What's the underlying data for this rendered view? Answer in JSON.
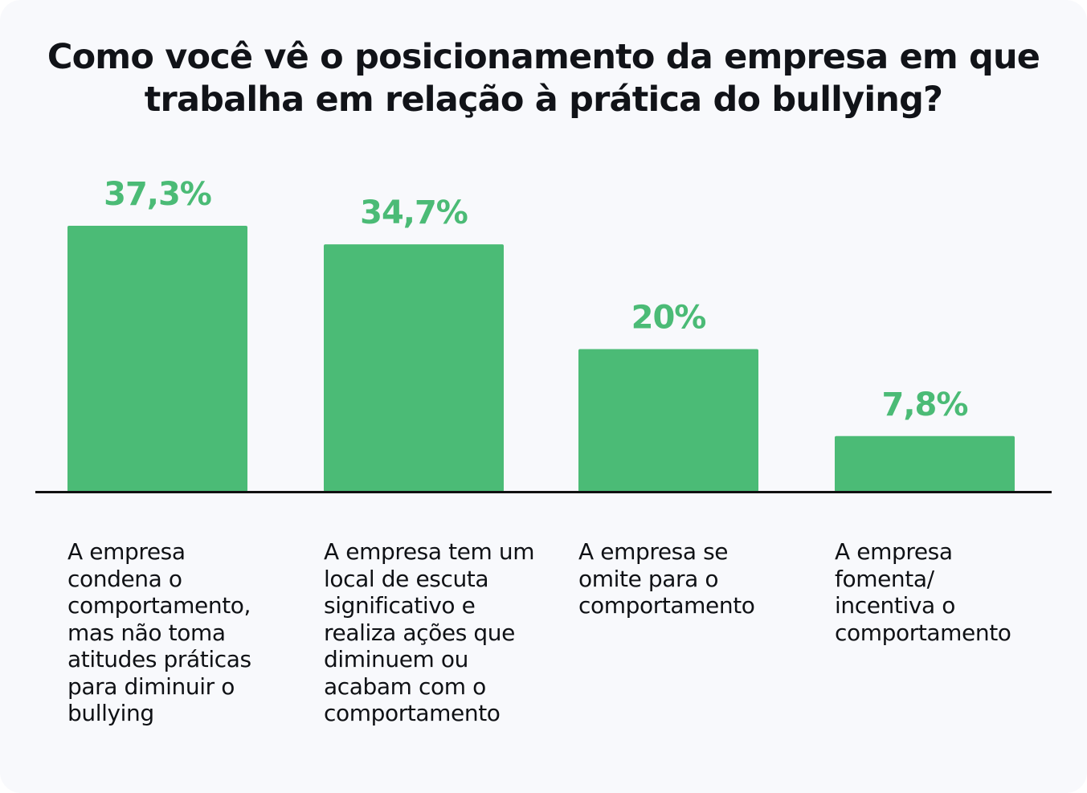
{
  "chart_data": {
    "type": "bar",
    "title": "Como você vê o posicionamento da empresa em que trabalha em relação à prática do bullying?",
    "categories": [
      "A empresa\ncondena o\ncomportamento,\nmas não toma\natitudes práticas\npara diminuir o\nbullying",
      "A empresa tem um\nlocal de escuta\nsignificativo e\nrealiza ações que\ndiminuem ou\nacabam com o\ncomportamento",
      "A empresa se\nomite para o\ncomportamento",
      "A empresa\nfomenta/\nincentiva o\ncomportamento"
    ],
    "values": [
      37.3,
      34.7,
      20,
      7.8
    ],
    "value_labels": [
      "37,3%",
      "34,7%",
      "20%",
      "7,8%"
    ],
    "ylim": [
      0,
      40
    ],
    "xlabel": "",
    "ylabel": "",
    "grid": false,
    "legend": "none",
    "colors": {
      "bar": "#4bbb76",
      "value_label": "#4bbb76",
      "baseline": "#111111",
      "background": "#f8f9fc",
      "text": "#111318"
    }
  }
}
